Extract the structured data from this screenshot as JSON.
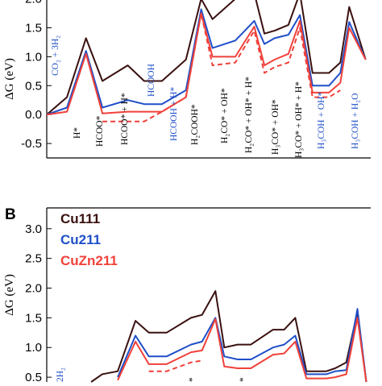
{
  "colors": {
    "Cu111": "#3a1010",
    "Cu211": "#1f4fc8",
    "CuZn211": "#f0413a",
    "black_label": "#000000",
    "blue_label": "#1f4fc8"
  },
  "chart_data": [
    {
      "panel": "",
      "type": "line",
      "ylabel": "ΔG (eV)",
      "ytick_labels": [
        "-0.5",
        "0.0",
        "0.5",
        "1.0",
        "1.5",
        "2.0"
      ],
      "ylim": [
        -0.75,
        2.05
      ],
      "state_labels": [
        {
          "text": "CO₂ + 3H₂",
          "color": "blue"
        },
        {
          "text": "H*",
          "color": "black"
        },
        {
          "text": "HCOO*",
          "color": "black"
        },
        {
          "text": "HCOO* + H*",
          "color": "black"
        },
        {
          "text": "HCOOH",
          "color": "blue"
        },
        {
          "text": "HCOOH + H*",
          "color": "blue"
        },
        {
          "text": "H₂COOH*",
          "color": "black"
        },
        {
          "text": "H₂CO* + OH*",
          "color": "black"
        },
        {
          "text": "H₂CO* + OH* + H*",
          "color": "black"
        },
        {
          "text": "H₃CO* + OH*",
          "color": "black"
        },
        {
          "text": "H₃CO* + OH* + H*",
          "color": "black"
        },
        {
          "text": "H₃COH + OH*",
          "color": "blue"
        },
        {
          "text": "H₃COH + H₂O",
          "color": "blue"
        }
      ],
      "series": [
        {
          "name": "Cu111",
          "style": "solid",
          "points": [
            [
              0.0,
              0.0
            ],
            [
              0.8,
              0.3
            ],
            [
              1.55,
              1.32
            ],
            [
              2.2,
              0.58
            ],
            [
              3.2,
              0.85
            ],
            [
              3.85,
              0.58
            ],
            [
              4.55,
              0.58
            ],
            [
              5.5,
              0.95
            ],
            [
              6.1,
              2.0
            ],
            [
              6.55,
              1.65
            ],
            [
              7.45,
              2.0
            ],
            [
              8.2,
              2.1
            ],
            [
              8.6,
              1.4
            ],
            [
              9.0,
              1.45
            ],
            [
              9.55,
              1.55
            ],
            [
              10.0,
              2.1
            ],
            [
              10.5,
              0.72
            ],
            [
              11.15,
              0.72
            ],
            [
              11.6,
              0.9
            ],
            [
              11.95,
              1.86
            ],
            [
              12.6,
              0.95
            ]
          ]
        },
        {
          "name": "Cu211",
          "style": "solid",
          "points": [
            [
              0.0,
              0.0
            ],
            [
              0.8,
              0.12
            ],
            [
              1.55,
              1.1
            ],
            [
              2.2,
              0.12
            ],
            [
              3.2,
              0.25
            ],
            [
              3.85,
              0.18
            ],
            [
              4.55,
              0.18
            ],
            [
              5.5,
              0.42
            ],
            [
              6.1,
              1.82
            ],
            [
              6.55,
              1.15
            ],
            [
              7.45,
              1.28
            ],
            [
              8.2,
              1.62
            ],
            [
              8.6,
              1.22
            ],
            [
              9.0,
              1.32
            ],
            [
              9.55,
              1.38
            ],
            [
              10.0,
              1.72
            ],
            [
              10.5,
              0.5
            ],
            [
              11.15,
              0.5
            ],
            [
              11.6,
              0.72
            ],
            [
              11.95,
              1.6
            ],
            [
              12.6,
              0.95
            ]
          ]
        },
        {
          "name": "CuZn211",
          "style": "solid",
          "points": [
            [
              0.0,
              0.0
            ],
            [
              0.8,
              0.05
            ],
            [
              1.55,
              1.05
            ],
            [
              2.2,
              0.02
            ],
            [
              3.2,
              0.05
            ],
            [
              3.85,
              0.05
            ],
            [
              4.55,
              0.05
            ],
            [
              5.5,
              0.3
            ],
            [
              6.1,
              1.75
            ],
            [
              6.55,
              1.0
            ],
            [
              7.45,
              1.0
            ],
            [
              8.2,
              1.52
            ],
            [
              8.6,
              0.85
            ],
            [
              9.0,
              0.95
            ],
            [
              9.55,
              1.05
            ],
            [
              10.0,
              1.62
            ],
            [
              10.5,
              0.38
            ],
            [
              11.15,
              0.38
            ],
            [
              11.6,
              0.55
            ],
            [
              11.95,
              1.5
            ],
            [
              12.6,
              0.95
            ]
          ]
        },
        {
          "name": "CuZn211",
          "style": "dashed",
          "points": [
            [
              2.2,
              -0.12
            ],
            [
              3.2,
              -0.12
            ],
            [
              3.85,
              -0.12
            ],
            [
              4.55,
              0.05
            ],
            [
              5.5,
              0.3
            ],
            [
              6.1,
              1.75
            ],
            [
              6.55,
              0.85
            ],
            [
              7.45,
              0.9
            ],
            [
              8.2,
              1.45
            ],
            [
              8.6,
              0.72
            ],
            [
              9.0,
              0.82
            ],
            [
              9.55,
              0.9
            ],
            [
              10.0,
              1.5
            ],
            [
              10.5,
              0.3
            ],
            [
              11.15,
              0.3
            ],
            [
              11.6,
              0.42
            ]
          ]
        }
      ]
    },
    {
      "panel": "B",
      "type": "line",
      "ylabel": "ΔG (eV)",
      "ytick_labels": [
        "0.5",
        "1.0",
        "1.5",
        "2.0",
        "2.5",
        "3.0"
      ],
      "ylim": [
        0.42,
        3.35
      ],
      "legend_position": "top-left",
      "legend": [
        "Cu111",
        "Cu211",
        "CuZn211"
      ],
      "state_labels": [
        {
          "text": "2H₂",
          "color": "blue"
        },
        {
          "text": "*",
          "color": "black"
        },
        {
          "text": "*",
          "color": "black"
        }
      ],
      "series": [
        {
          "name": "Cu111",
          "style": "solid",
          "points": [
            [
              2.0,
              0.42
            ],
            [
              2.5,
              0.55
            ],
            [
              3.2,
              0.6
            ],
            [
              4.0,
              1.45
            ],
            [
              4.6,
              1.25
            ],
            [
              5.4,
              1.25
            ],
            [
              6.5,
              1.5
            ],
            [
              7.0,
              1.55
            ],
            [
              7.6,
              1.95
            ],
            [
              8.0,
              1.0
            ],
            [
              8.6,
              1.05
            ],
            [
              9.2,
              1.05
            ],
            [
              10.2,
              1.3
            ],
            [
              10.7,
              1.3
            ],
            [
              11.2,
              1.5
            ],
            [
              11.7,
              0.6
            ],
            [
              12.6,
              0.6
            ],
            [
              13.0,
              0.65
            ],
            [
              13.5,
              0.75
            ],
            [
              14.0,
              1.6
            ],
            [
              14.4,
              0.42
            ]
          ]
        },
        {
          "name": "Cu211",
          "style": "solid",
          "points": [
            [
              3.2,
              0.5
            ],
            [
              4.0,
              1.2
            ],
            [
              4.6,
              0.85
            ],
            [
              5.4,
              0.85
            ],
            [
              6.5,
              1.05
            ],
            [
              7.0,
              1.1
            ],
            [
              7.6,
              1.5
            ],
            [
              8.0,
              0.85
            ],
            [
              8.6,
              0.8
            ],
            [
              9.2,
              0.8
            ],
            [
              10.2,
              1.0
            ],
            [
              10.7,
              1.05
            ],
            [
              11.2,
              1.2
            ],
            [
              11.7,
              0.55
            ],
            [
              12.6,
              0.55
            ],
            [
              13.0,
              0.6
            ],
            [
              13.5,
              0.62
            ],
            [
              14.0,
              1.65
            ],
            [
              14.4,
              0.42
            ]
          ]
        },
        {
          "name": "CuZn211",
          "style": "solid",
          "points": [
            [
              3.2,
              0.45
            ],
            [
              4.0,
              1.1
            ],
            [
              4.6,
              0.72
            ],
            [
              5.4,
              0.72
            ],
            [
              6.5,
              0.92
            ],
            [
              7.0,
              0.95
            ],
            [
              7.6,
              1.48
            ],
            [
              8.0,
              0.68
            ],
            [
              8.6,
              0.65
            ],
            [
              9.2,
              0.65
            ],
            [
              10.2,
              0.88
            ],
            [
              10.7,
              0.9
            ],
            [
              11.2,
              1.1
            ],
            [
              11.7,
              0.48
            ],
            [
              12.6,
              0.48
            ],
            [
              13.0,
              0.5
            ],
            [
              13.5,
              0.55
            ],
            [
              14.0,
              1.5
            ],
            [
              14.4,
              0.42
            ]
          ]
        },
        {
          "name": "CuZn211",
          "style": "dashed",
          "points": [
            [
              4.6,
              0.6
            ],
            [
              5.4,
              0.6
            ],
            [
              6.5,
              0.75
            ],
            [
              7.0,
              0.78
            ]
          ]
        }
      ]
    }
  ]
}
